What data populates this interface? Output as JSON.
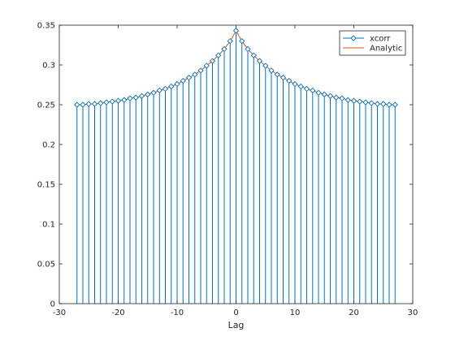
{
  "chart_data": {
    "type": "stem",
    "title": "",
    "xlabel": "Lag",
    "ylabel": "",
    "xlim": [
      -30,
      30
    ],
    "ylim": [
      0,
      0.35
    ],
    "xticks": [
      -30,
      -20,
      -10,
      0,
      10,
      20,
      30
    ],
    "yticks": [
      0,
      0.05,
      0.1,
      0.15,
      0.2,
      0.25,
      0.3,
      0.35
    ],
    "xtick_labels": [
      "-30",
      "-20",
      "-10",
      "0",
      "10",
      "20",
      "30"
    ],
    "ytick_labels": [
      "0",
      "0.05",
      "0.1",
      "0.15",
      "0.2",
      "0.25",
      "0.3",
      "0.35"
    ],
    "grid": false,
    "legend_position": "top-right",
    "series": [
      {
        "name": "xcorr",
        "style": "stem",
        "marker": "diamond",
        "color": "#0072bd",
        "x": [
          -27,
          -26,
          -25,
          -24,
          -23,
          -22,
          -21,
          -20,
          -19,
          -18,
          -17,
          -16,
          -15,
          -14,
          -13,
          -12,
          -11,
          -10,
          -9,
          -8,
          -7,
          -6,
          -5,
          -4,
          -3,
          -2,
          -1,
          0,
          1,
          2,
          3,
          4,
          5,
          6,
          7,
          8,
          9,
          10,
          11,
          12,
          13,
          14,
          15,
          16,
          17,
          18,
          19,
          20,
          21,
          22,
          23,
          24,
          25,
          26,
          27
        ],
        "values": [
          0.25,
          0.25,
          0.251,
          0.251,
          0.252,
          0.253,
          0.254,
          0.255,
          0.256,
          0.258,
          0.259,
          0.261,
          0.263,
          0.265,
          0.268,
          0.27,
          0.273,
          0.276,
          0.28,
          0.284,
          0.288,
          0.293,
          0.299,
          0.305,
          0.312,
          0.32,
          0.33,
          0.343,
          0.33,
          0.32,
          0.312,
          0.305,
          0.299,
          0.293,
          0.288,
          0.284,
          0.28,
          0.276,
          0.273,
          0.27,
          0.268,
          0.265,
          0.263,
          0.261,
          0.259,
          0.258,
          0.256,
          0.255,
          0.254,
          0.253,
          0.252,
          0.251,
          0.251,
          0.25,
          0.25
        ]
      },
      {
        "name": "Analytic",
        "style": "line",
        "color": "#d95319",
        "x": [
          -27,
          -26,
          -25,
          -24,
          -23,
          -22,
          -21,
          -20,
          -19,
          -18,
          -17,
          -16,
          -15,
          -14,
          -13,
          -12,
          -11,
          -10,
          -9,
          -8,
          -7,
          -6,
          -5,
          -4,
          -3,
          -2,
          -1,
          0,
          1,
          2,
          3,
          4,
          5,
          6,
          7,
          8,
          9,
          10,
          11,
          12,
          13,
          14,
          15,
          16,
          17,
          18,
          19,
          20,
          21,
          22,
          23,
          24,
          25,
          26,
          27
        ],
        "values": [
          0.25,
          0.25,
          0.251,
          0.251,
          0.252,
          0.253,
          0.254,
          0.255,
          0.256,
          0.258,
          0.259,
          0.261,
          0.263,
          0.265,
          0.268,
          0.27,
          0.273,
          0.276,
          0.28,
          0.284,
          0.288,
          0.293,
          0.299,
          0.305,
          0.312,
          0.32,
          0.33,
          0.343,
          0.33,
          0.32,
          0.312,
          0.305,
          0.299,
          0.293,
          0.288,
          0.284,
          0.28,
          0.276,
          0.273,
          0.27,
          0.268,
          0.265,
          0.263,
          0.261,
          0.259,
          0.258,
          0.256,
          0.255,
          0.254,
          0.253,
          0.252,
          0.251,
          0.251,
          0.25,
          0.25
        ]
      }
    ]
  }
}
